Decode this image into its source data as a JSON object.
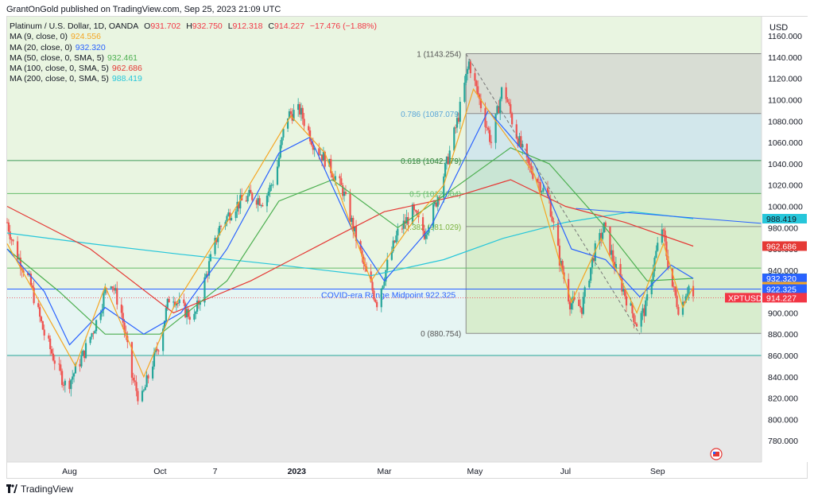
{
  "header": {
    "published": "GrantOnGold published on TradingView.com, Sep 25, 2023 21:09 UTC"
  },
  "legend": {
    "symbol": "Platinum / U.S. Dollar, 1D, OANDA",
    "ohlc": {
      "o_label": "O",
      "o": "931.702",
      "h_label": "H",
      "h": "932.750",
      "l_label": "L",
      "l": "912.318",
      "c_label": "C",
      "c": "914.227",
      "change": "−17.476 (−1.88%)"
    },
    "mas": [
      {
        "label": "MA (9, close, 0)",
        "value": "924.556",
        "color": "#f5a623"
      },
      {
        "label": "MA (20, close, 0)",
        "value": "932.320",
        "color": "#2962ff"
      },
      {
        "label": "MA (50, close, 0, SMA, 5)",
        "value": "932.461",
        "color": "#4caf50"
      },
      {
        "label": "MA (100, close, 0, SMA, 5)",
        "value": "962.686",
        "color": "#e53935"
      },
      {
        "label": "MA (200, close, 0, SMA, 5)",
        "value": "988.419",
        "color": "#26c6da"
      }
    ]
  },
  "footer": {
    "brand": "TradingView"
  },
  "chart_data": {
    "type": "candlestick",
    "currency": "USD",
    "ylim": [
      760,
      1178
    ],
    "y_ticks": [
      780,
      800,
      820,
      840,
      860,
      880,
      900,
      920,
      940,
      960,
      980,
      1000,
      1020,
      1040,
      1060,
      1080,
      1100,
      1120,
      1140,
      1160
    ],
    "y_tick_labels": [
      "780.000",
      "800.000",
      "820.000",
      "840.000",
      "860.000",
      "880.000",
      "900.000",
      "920.000",
      "940.000",
      "960.000",
      "980.000",
      "1000.000",
      "1020.000",
      "1040.000",
      "1060.000",
      "1080.000",
      "1100.000",
      "1120.000",
      "1140.000",
      "1160.000"
    ],
    "x_labels": [
      {
        "label": "Aug",
        "date": "2022-08-01"
      },
      {
        "label": "Oct",
        "date": "2022-10-01"
      },
      {
        "label": "7",
        "date": "2022-11-07"
      },
      {
        "label": "2023",
        "date": "2023-01-01",
        "bold": true
      },
      {
        "label": "Mar",
        "date": "2023-03-01"
      },
      {
        "label": "May",
        "date": "2023-05-01"
      },
      {
        "label": "Jul",
        "date": "2023-07-01"
      },
      {
        "label": "Sep",
        "date": "2023-09-01"
      }
    ],
    "x_range": [
      "2022-06-20",
      "2023-11-10"
    ],
    "close_path": [
      [
        "2022-06-20",
        985
      ],
      [
        "2022-06-25",
        960
      ],
      [
        "2022-07-05",
        930
      ],
      [
        "2022-07-15",
        880
      ],
      [
        "2022-07-25",
        845
      ],
      [
        "2022-07-30",
        830
      ],
      [
        "2022-08-10",
        860
      ],
      [
        "2022-08-20",
        895
      ],
      [
        "2022-08-28",
        935
      ],
      [
        "2022-09-05",
        900
      ],
      [
        "2022-09-12",
        840
      ],
      [
        "2022-09-18",
        815
      ],
      [
        "2022-09-24",
        845
      ],
      [
        "2022-09-30",
        870
      ],
      [
        "2022-10-08",
        920
      ],
      [
        "2022-10-15",
        905
      ],
      [
        "2022-10-24",
        895
      ],
      [
        "2022-11-01",
        935
      ],
      [
        "2022-11-10",
        980
      ],
      [
        "2022-11-20",
        1000
      ],
      [
        "2022-12-01",
        1010
      ],
      [
        "2022-12-10",
        1005
      ],
      [
        "2022-12-18",
        1030
      ],
      [
        "2022-12-25",
        1085
      ],
      [
        "2023-01-03",
        1090
      ],
      [
        "2023-01-12",
        1060
      ],
      [
        "2023-01-22",
        1040
      ],
      [
        "2023-02-01",
        1015
      ],
      [
        "2023-02-08",
        980
      ],
      [
        "2023-02-16",
        940
      ],
      [
        "2023-02-24",
        910
      ],
      [
        "2023-03-03",
        945
      ],
      [
        "2023-03-10",
        975
      ],
      [
        "2023-03-20",
        995
      ],
      [
        "2023-03-28",
        975
      ],
      [
        "2023-04-04",
        1000
      ],
      [
        "2023-04-12",
        1040
      ],
      [
        "2023-04-20",
        1085
      ],
      [
        "2023-04-27",
        1135
      ],
      [
        "2023-05-05",
        1095
      ],
      [
        "2023-05-12",
        1060
      ],
      [
        "2023-05-20",
        1115
      ],
      [
        "2023-05-27",
        1075
      ],
      [
        "2023-06-05",
        1040
      ],
      [
        "2023-06-12",
        1025
      ],
      [
        "2023-06-20",
        1005
      ],
      [
        "2023-06-27",
        950
      ],
      [
        "2023-07-04",
        910
      ],
      [
        "2023-07-12",
        905
      ],
      [
        "2023-07-20",
        955
      ],
      [
        "2023-07-27",
        980
      ],
      [
        "2023-08-04",
        940
      ],
      [
        "2023-08-12",
        910
      ],
      [
        "2023-08-18",
        890
      ],
      [
        "2023-08-24",
        905
      ],
      [
        "2023-08-30",
        950
      ],
      [
        "2023-09-04",
        980
      ],
      [
        "2023-09-10",
        930
      ],
      [
        "2023-09-16",
        900
      ],
      [
        "2023-09-20",
        920
      ],
      [
        "2023-09-22",
        925
      ],
      [
        "2023-09-25",
        914.227
      ]
    ],
    "moving_averages": [
      {
        "name": "MA 200",
        "color": "#26c6da",
        "points": [
          [
            "2022-06-20",
            975
          ],
          [
            "2022-08-15",
            965
          ],
          [
            "2022-10-15",
            955
          ],
          [
            "2022-12-20",
            945
          ],
          [
            "2023-02-20",
            935
          ],
          [
            "2023-04-10",
            950
          ],
          [
            "2023-05-20",
            970
          ],
          [
            "2023-07-01",
            985
          ],
          [
            "2023-08-15",
            995
          ],
          [
            "2023-09-25",
            988.419
          ]
        ]
      },
      {
        "name": "MA 100",
        "color": "#e53935",
        "points": [
          [
            "2022-06-20",
            1000
          ],
          [
            "2022-08-15",
            960
          ],
          [
            "2022-10-10",
            900
          ],
          [
            "2022-12-01",
            930
          ],
          [
            "2023-01-25",
            970
          ],
          [
            "2023-03-01",
            995
          ],
          [
            "2023-04-20",
            1010
          ],
          [
            "2023-05-25",
            1025
          ],
          [
            "2023-07-01",
            1000
          ],
          [
            "2023-08-10",
            985
          ],
          [
            "2023-09-25",
            962.686
          ]
        ]
      },
      {
        "name": "MA 50",
        "color": "#4caf50",
        "points": [
          [
            "2022-06-20",
            960
          ],
          [
            "2022-07-25",
            920
          ],
          [
            "2022-08-25",
            880
          ],
          [
            "2022-10-01",
            880
          ],
          [
            "2022-11-15",
            930
          ],
          [
            "2022-12-20",
            1005
          ],
          [
            "2023-01-25",
            1025
          ],
          [
            "2023-03-10",
            980
          ],
          [
            "2023-04-10",
            1010
          ],
          [
            "2023-05-25",
            1055
          ],
          [
            "2023-06-20",
            1040
          ],
          [
            "2023-07-25",
            985
          ],
          [
            "2023-08-25",
            930
          ],
          [
            "2023-09-25",
            932.461
          ]
        ]
      },
      {
        "name": "MA 20",
        "color": "#2962ff",
        "points": [
          [
            "2022-06-20",
            960
          ],
          [
            "2022-07-15",
            920
          ],
          [
            "2022-08-01",
            870
          ],
          [
            "2022-08-25",
            905
          ],
          [
            "2022-09-20",
            880
          ],
          [
            "2022-10-15",
            900
          ],
          [
            "2022-11-15",
            960
          ],
          [
            "2022-12-20",
            1050
          ],
          [
            "2023-01-10",
            1065
          ],
          [
            "2023-02-10",
            970
          ],
          [
            "2023-03-01",
            930
          ],
          [
            "2023-04-01",
            980
          ],
          [
            "2023-05-10",
            1090
          ],
          [
            "2023-06-10",
            1040
          ],
          [
            "2023-07-05",
            960
          ],
          [
            "2023-07-28",
            950
          ],
          [
            "2023-08-20",
            915
          ],
          [
            "2023-09-10",
            945
          ],
          [
            "2023-09-25",
            932.32
          ]
        ]
      },
      {
        "name": "MA 9",
        "color": "#f5a623",
        "points": [
          [
            "2022-06-20",
            965
          ],
          [
            "2022-07-20",
            890
          ],
          [
            "2022-08-05",
            850
          ],
          [
            "2022-08-25",
            925
          ],
          [
            "2022-09-20",
            840
          ],
          [
            "2022-10-10",
            905
          ],
          [
            "2022-11-15",
            985
          ],
          [
            "2022-12-28",
            1085
          ],
          [
            "2023-01-20",
            1050
          ],
          [
            "2023-02-20",
            930
          ],
          [
            "2023-03-20",
            985
          ],
          [
            "2023-04-10",
            1020
          ],
          [
            "2023-04-30",
            1110
          ],
          [
            "2023-05-15",
            1080
          ],
          [
            "2023-06-10",
            1030
          ],
          [
            "2023-07-05",
            910
          ],
          [
            "2023-07-25",
            970
          ],
          [
            "2023-08-18",
            900
          ],
          [
            "2023-09-05",
            965
          ],
          [
            "2023-09-18",
            905
          ],
          [
            "2023-09-25",
            924.556
          ]
        ]
      }
    ],
    "zones": [
      {
        "from": 922.325,
        "to": 1178,
        "color": "#e9f5e1"
      },
      {
        "from": 860,
        "to": 922.325,
        "color": "#e6f5f3"
      },
      {
        "from": 760,
        "to": 860,
        "color": "#e7e7e7"
      }
    ],
    "horizontal_lines": [
      {
        "value": 1042.979,
        "color": "#3f9a5a"
      },
      {
        "value": 1012.004,
        "color": "#66bb6a"
      },
      {
        "value": 942,
        "color": "#66bb6a"
      },
      {
        "value": 922.325,
        "color": "#2962ff",
        "label": "COVID-era Range Midpoint 922.325"
      },
      {
        "value": 860,
        "color": "#26a69a"
      }
    ],
    "fibonacci": {
      "start_date": "2023-04-25",
      "end_date": "2023-11-10",
      "levels": [
        {
          "label": "1 (1143.254)",
          "value": 1143.254,
          "fill": "#d6dad3",
          "text_color": "#555555"
        },
        {
          "label": "0.786 (1087.079)",
          "value": 1087.079,
          "fill": "#cfe5ec",
          "text_color": "#5aa6d8"
        },
        {
          "label": "0.618 (1042.979)",
          "value": 1042.979,
          "fill": "#c5e3d3",
          "text_color": "#2e7d32"
        },
        {
          "label": "0.5 (1012.004)",
          "value": 1012.004,
          "fill": "#d1ebc9",
          "text_color": "#66bb6a"
        },
        {
          "label": "0.382 (981.029)",
          "value": 981.029,
          "fill": "#d6ecca",
          "text_color": "#7cb342"
        },
        {
          "label": "0 (880.754)",
          "value": 880.754,
          "fill": "#d6ecca",
          "text_color": "#555555"
        }
      ]
    },
    "trendlines": [
      {
        "from": [
          "2023-04-25",
          1143
        ],
        "to": [
          "2023-08-20",
          880
        ],
        "color": "#777777",
        "dashed": true
      },
      {
        "from": [
          "2023-07-08",
          998
        ],
        "to": [
          "2023-11-10",
          984
        ],
        "color": "#2962ff",
        "dashed": false
      }
    ],
    "price_tags": [
      {
        "label": "988.419",
        "value": 988.419,
        "bg": "#26c6da",
        "fg": "#131722"
      },
      {
        "label": "962.686",
        "value": 962.686,
        "bg": "#e53935",
        "fg": "#ffffff"
      },
      {
        "label": "932.461",
        "value": 932.461,
        "bg": "#4caf50",
        "fg": "#ffffff"
      },
      {
        "label": "932.320",
        "value": 932.32,
        "bg": "#2962ff",
        "fg": "#ffffff"
      },
      {
        "label": "924.556",
        "value": 924.556,
        "bg": "#f5a623",
        "fg": "#131722"
      },
      {
        "label": "922.325",
        "value": 922.325,
        "bg": "#2962ff",
        "fg": "#ffffff"
      },
      {
        "label": "914.227",
        "value": 914.227,
        "bg": "#f23645",
        "fg": "#ffffff",
        "symbol": "XPTUSD"
      }
    ]
  }
}
